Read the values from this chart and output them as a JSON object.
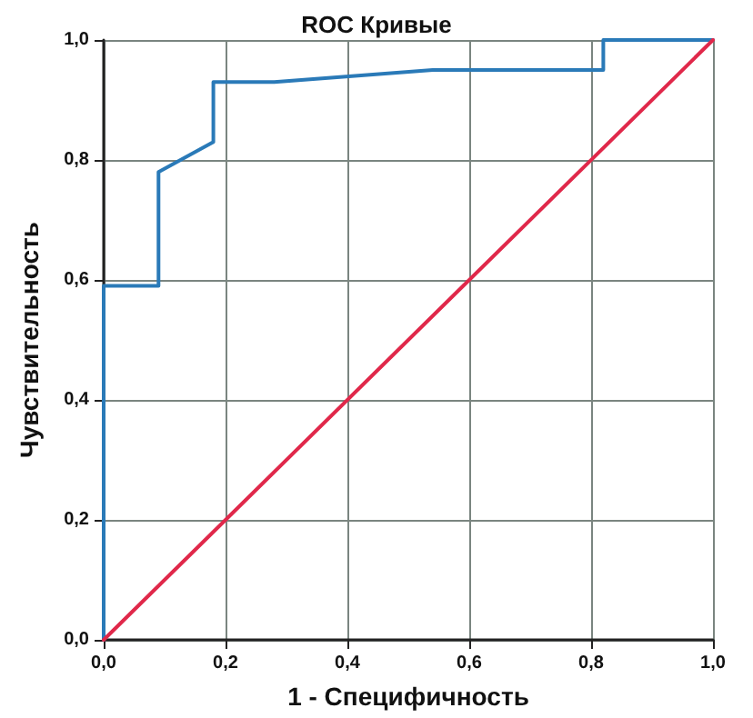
{
  "chart_data": {
    "type": "line",
    "title": "ROC Кривые",
    "xlabel": "1 - Специфичность",
    "ylabel": "Чувствительность",
    "xlim": [
      0,
      1
    ],
    "ylim": [
      0,
      1
    ],
    "xticks": [
      {
        "value": 0,
        "label": "0,0"
      },
      {
        "value": 0.2,
        "label": "0,2"
      },
      {
        "value": 0.4,
        "label": "0,4"
      },
      {
        "value": 0.6,
        "label": "0,6"
      },
      {
        "value": 0.8,
        "label": "0,8"
      },
      {
        "value": 1,
        "label": "1,0"
      }
    ],
    "yticks": [
      {
        "value": 0,
        "label": "0,0"
      },
      {
        "value": 0.2,
        "label": "0,2"
      },
      {
        "value": 0.4,
        "label": "0,4"
      },
      {
        "value": 0.6,
        "label": "0,6"
      },
      {
        "value": 0.8,
        "label": "0,8"
      },
      {
        "value": 1,
        "label": "1,0"
      }
    ],
    "grid": true,
    "marker": "none",
    "line_style": "solid",
    "series": [
      {
        "color": "#2a7ab8",
        "x": [
          0,
          0,
          0.09,
          0.09,
          0.18,
          0.18,
          0.28,
          0.54,
          0.82,
          0.82,
          1
        ],
        "values": [
          0,
          0.59,
          0.59,
          0.78,
          0.83,
          0.93,
          0.93,
          0.95,
          0.95,
          1,
          1
        ]
      },
      {
        "color": "#e0284a",
        "x": [
          0,
          1
        ],
        "values": [
          0,
          1
        ]
      }
    ]
  }
}
